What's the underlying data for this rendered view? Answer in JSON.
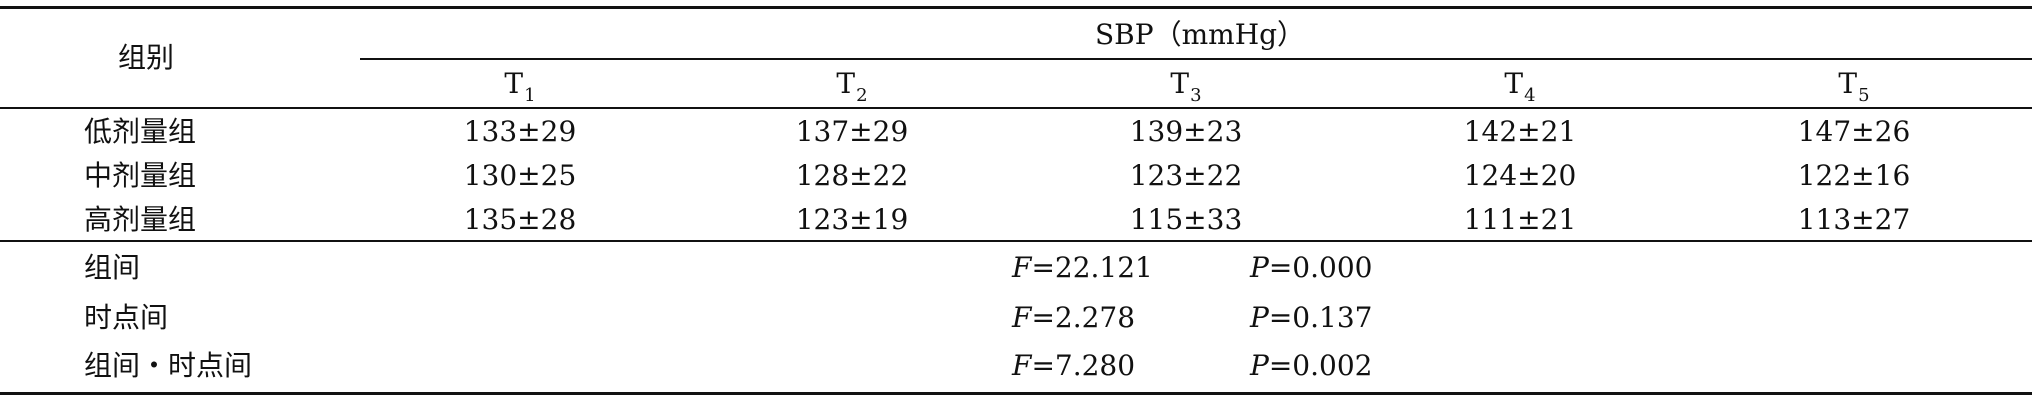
{
  "table": {
    "group_header": "组别",
    "measure_header": "SBP（mmHg）",
    "timepoints": [
      {
        "base": "T",
        "sub": "1"
      },
      {
        "base": "T",
        "sub": "2"
      },
      {
        "base": "T",
        "sub": "3"
      },
      {
        "base": "T",
        "sub": "4"
      },
      {
        "base": "T",
        "sub": "5"
      }
    ],
    "rows": [
      {
        "label": "低剂量组",
        "values": [
          "133±29",
          "137±29",
          "139±23",
          "142±21",
          "147±26"
        ]
      },
      {
        "label": "中剂量组",
        "values": [
          "130±25",
          "128±22",
          "123±22",
          "124±20",
          "122±16"
        ]
      },
      {
        "label": "高剂量组",
        "values": [
          "135±28",
          "123±19",
          "115±33",
          "111±21",
          "113±27"
        ]
      }
    ],
    "stats": [
      {
        "label": "组间",
        "f_label": "F",
        "f_text": "=22.121",
        "p_label": "P",
        "p_text": "=0.000"
      },
      {
        "label": "时点间",
        "f_label": "F",
        "f_text": "=2.278",
        "p_label": "P",
        "p_text": "=0.137"
      },
      {
        "label": "组间・时点间",
        "f_label": "F",
        "f_text": "=7.280",
        "p_label": "P",
        "p_text": "=0.002"
      }
    ]
  }
}
